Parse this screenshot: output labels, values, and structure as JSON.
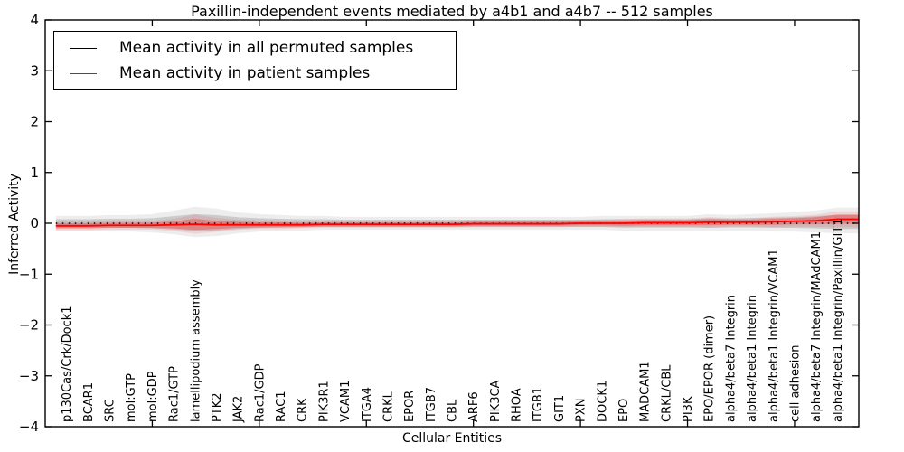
{
  "chart_data": {
    "type": "line",
    "title": "Paxillin-independent events mediated by a4b1 and a4b7 -- 512 samples",
    "xlabel": "Cellular Entities",
    "ylabel": "Inferred Activity",
    "ylim": [
      -4,
      4
    ],
    "xlim": [
      0,
      38
    ],
    "yticks": [
      -4,
      -3,
      -2,
      -1,
      0,
      1,
      2,
      3,
      4
    ],
    "xticks": [
      5,
      10,
      15,
      20,
      25,
      30,
      35
    ],
    "grid": false,
    "legend_position": "upper-left",
    "categories": [
      "p130Cas/Crk/Dock1",
      "BCAR1",
      "SRC",
      "mol:GTP",
      "mol:GDP",
      "Rac1/GTP",
      "lamellipodium assembly",
      "PTK2",
      "JAK2",
      "Rac1/GDP",
      "RAC1",
      "CRK",
      "PIK3R1",
      "VCAM1",
      "ITGA4",
      "CRKL",
      "EPOR",
      "ITGB7",
      "CBL",
      "ARF6",
      "PIK3CA",
      "RHOA",
      "ITGB1",
      "GIT1",
      "PXN",
      "DOCK1",
      "EPO",
      "MADCAM1",
      "CRKL/CBL",
      "PI3K",
      "EPO/EPOR (dimer)",
      "alpha4/beta7 Integrin",
      "alpha4/beta1 Integrin",
      "alpha4/beta1 Integrin/VCAM1",
      "cell adhesion",
      "alpha4/beta7 Integrin/MAdCAM1",
      "alpha4/beta1 Integrin/Paxillin/GIT1"
    ],
    "series": [
      {
        "name": "Mean activity in all permuted samples",
        "color": "#000000",
        "linestyle": "dotted",
        "values": [
          0,
          0,
          0,
          0,
          0,
          0,
          0,
          0,
          0,
          0,
          0,
          0,
          0,
          0,
          0,
          0,
          0,
          0,
          0,
          0,
          0,
          0,
          0,
          0,
          0,
          0,
          0,
          0,
          0,
          0,
          0,
          0,
          0,
          0,
          0,
          0,
          0
        ],
        "band_upper": [
          0.08,
          0.08,
          0.09,
          0.09,
          0.1,
          0.14,
          0.18,
          0.16,
          0.12,
          0.1,
          0.09,
          0.08,
          0.08,
          0.07,
          0.07,
          0.07,
          0.07,
          0.07,
          0.07,
          0.07,
          0.07,
          0.07,
          0.07,
          0.07,
          0.07,
          0.08,
          0.08,
          0.08,
          0.08,
          0.08,
          0.1,
          0.09,
          0.1,
          0.11,
          0.12,
          0.14,
          0.17
        ],
        "band_lower": [
          -0.08,
          -0.08,
          -0.09,
          -0.09,
          -0.1,
          -0.12,
          -0.15,
          -0.14,
          -0.11,
          -0.09,
          -0.08,
          -0.08,
          -0.07,
          -0.07,
          -0.07,
          -0.07,
          -0.07,
          -0.07,
          -0.07,
          -0.07,
          -0.07,
          -0.07,
          -0.07,
          -0.07,
          -0.07,
          -0.07,
          -0.08,
          -0.08,
          -0.08,
          -0.08,
          -0.09,
          -0.08,
          -0.08,
          -0.09,
          -0.09,
          -0.1,
          -0.11
        ],
        "band_color": "rgba(0,0,0,0.14)",
        "band_glow_color": "rgba(0,0,0,0.07)"
      },
      {
        "name": "Mean activity in patient samples",
        "color": "#ff0000",
        "linestyle": "solid",
        "values": [
          -0.05,
          -0.05,
          -0.04,
          -0.04,
          -0.04,
          -0.03,
          -0.02,
          -0.03,
          -0.03,
          -0.03,
          -0.03,
          -0.03,
          -0.02,
          -0.02,
          -0.02,
          -0.02,
          -0.02,
          -0.02,
          -0.02,
          -0.01,
          -0.01,
          -0.01,
          -0.01,
          -0.01,
          0.0,
          0.0,
          0.0,
          0.01,
          0.01,
          0.01,
          0.02,
          0.02,
          0.02,
          0.03,
          0.04,
          0.05,
          0.08
        ],
        "band_std": [
          0.05,
          0.05,
          0.05,
          0.05,
          0.05,
          0.07,
          0.11,
          0.08,
          0.06,
          0.05,
          0.05,
          0.04,
          0.04,
          0.04,
          0.04,
          0.04,
          0.04,
          0.04,
          0.04,
          0.04,
          0.04,
          0.04,
          0.04,
          0.04,
          0.04,
          0.04,
          0.05,
          0.05,
          0.05,
          0.05,
          0.06,
          0.05,
          0.05,
          0.06,
          0.06,
          0.07,
          0.09
        ],
        "band_color": "rgba(255,0,0,0.28)",
        "band_glow_color": "rgba(255,0,0,0.10)"
      }
    ]
  }
}
